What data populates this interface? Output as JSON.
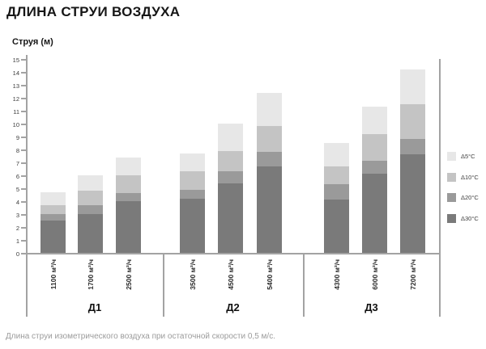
{
  "page": {
    "title": "ДЛИНА СТРУИ ВОЗДУХА",
    "footnote": "Длина струи изометрического воздуха при остаточной скорости 0,5 м/с."
  },
  "chart_data": {
    "type": "bar",
    "stacked": true,
    "title": "ДЛИНА СТРУИ ВОЗДУХА",
    "ylabel": "Струя (м)",
    "note": "Длина струи изометрического воздуха при остаточной скорости 0,5 м/с.",
    "ylim": [
      0,
      15
    ],
    "ytick_step": 1,
    "grid": false,
    "legend_position": "right",
    "values_are": "cumulative jet length in metres (each series is total height up to that ΔT band)",
    "categories": [
      "1100 м³/ч",
      "1700 м³/ч",
      "2500 м³/ч",
      "3500 м³/ч",
      "4500 м³/ч",
      "5400 м³/ч",
      "4300 м³/ч",
      "6000 м³/ч",
      "7200 м³/ч"
    ],
    "groups": [
      {
        "label": "Д1",
        "categories": [
          "1100 м³/ч",
          "1700 м³/ч",
          "2500 м³/ч"
        ]
      },
      {
        "label": "Д2",
        "categories": [
          "3500 м³/ч",
          "4500 м³/ч",
          "5400 м³/ч"
        ]
      },
      {
        "label": "Д3",
        "categories": [
          "4300 м³/ч",
          "6000 м³/ч",
          "7200 м³/ч"
        ]
      }
    ],
    "series": [
      {
        "name": "Δ5°C",
        "color": "#e7e7e7",
        "values": [
          4.7,
          6.0,
          7.4,
          7.7,
          10.0,
          12.4,
          8.5,
          11.3,
          14.2
        ]
      },
      {
        "name": "Δ10°C",
        "color": "#c4c4c4",
        "values": [
          3.7,
          4.8,
          6.0,
          6.3,
          7.9,
          9.8,
          6.7,
          9.2,
          11.5
        ]
      },
      {
        "name": "Δ20°C",
        "color": "#9a9a9a",
        "values": [
          3.0,
          3.7,
          4.6,
          4.9,
          6.3,
          7.8,
          5.3,
          7.1,
          8.8
        ]
      },
      {
        "name": "Δ30°C",
        "color": "#7a7a7a",
        "values": [
          2.5,
          3.0,
          4.0,
          4.2,
          5.4,
          6.7,
          4.1,
          6.1,
          7.6
        ]
      }
    ],
    "colors": {
      "axis": "#a3a3a3",
      "tick_text": "#3d3d3d",
      "title_text": "#161616",
      "footnote_text": "#9b9b9b"
    }
  }
}
